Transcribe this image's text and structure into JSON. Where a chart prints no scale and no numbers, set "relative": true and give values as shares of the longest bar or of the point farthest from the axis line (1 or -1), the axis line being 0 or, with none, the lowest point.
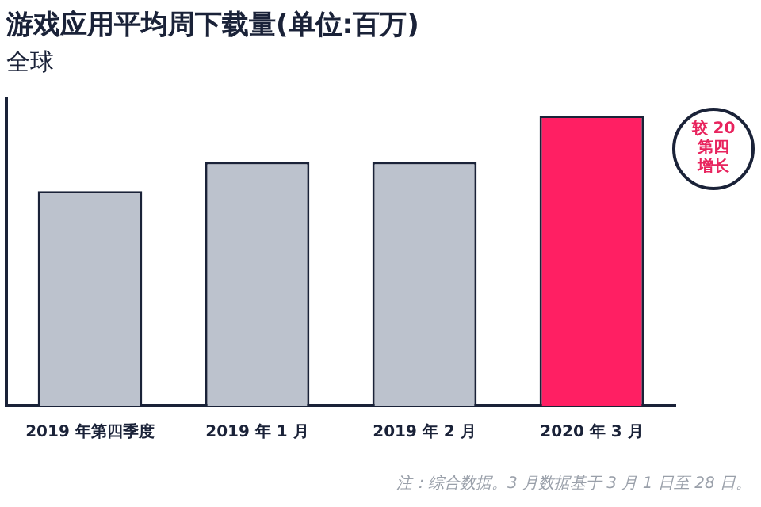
{
  "chart_data": {
    "type": "bar",
    "title": "游戏应用平均周下载量(单位:百万)",
    "subtitle": "全球",
    "categories": [
      "2019 年第四季度",
      "2019 年 1 月",
      "2019 年 2 月",
      "2020 年 3 月"
    ],
    "values": [
      0.74,
      0.84,
      0.84,
      1
    ],
    "colors": [
      "#bcc2cd",
      "#bcc2cd",
      "#bcc2cd",
      "#ff1f63"
    ],
    "relative": true,
    "legend": false,
    "annotations": [
      "较 20第四增长",
      "注：综合数据。3 月数据基于 3 月 1 日至 28 日。"
    ]
  }
}
